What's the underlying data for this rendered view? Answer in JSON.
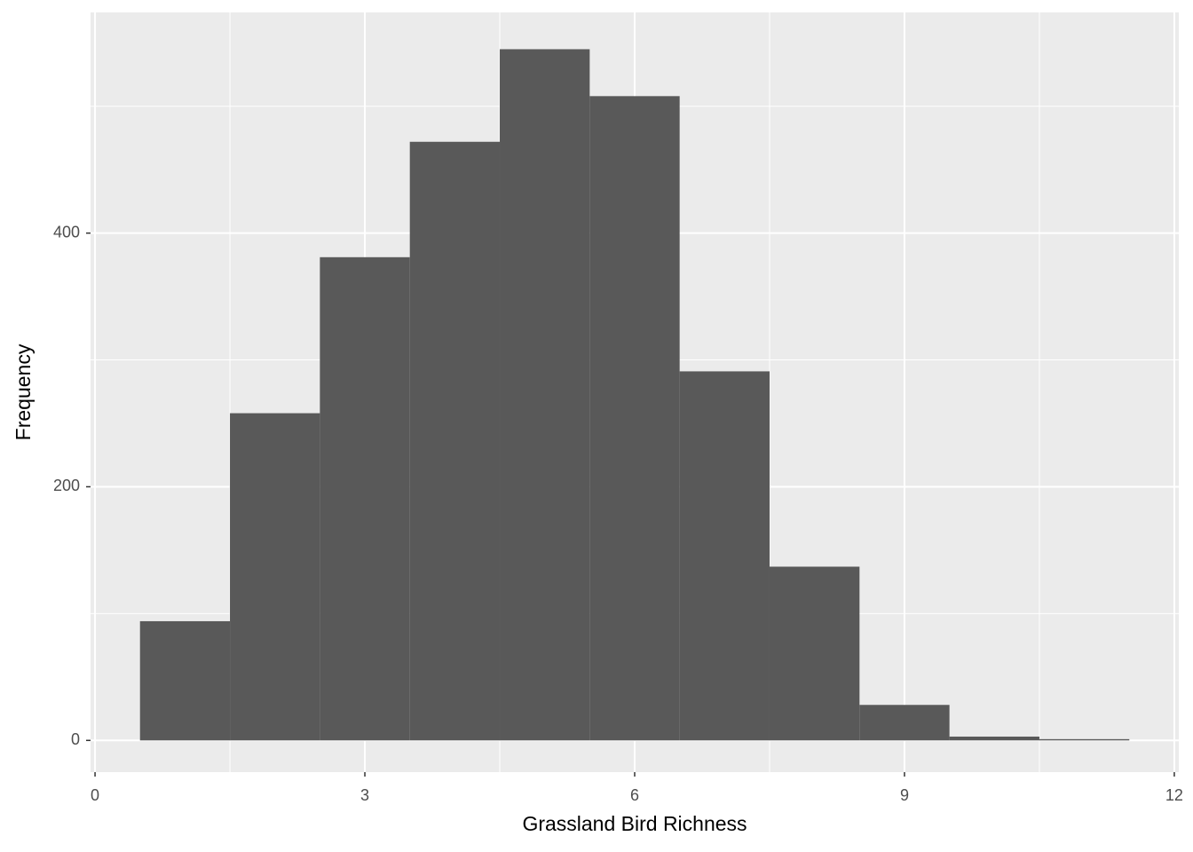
{
  "chart_data": {
    "type": "histogram",
    "xlabel": "Grassland Bird Richness",
    "ylabel": "Frequency",
    "bins": [
      0.5,
      1.5,
      2.5,
      3.5,
      4.5,
      5.5,
      6.5,
      7.5,
      8.5,
      9.5,
      10.5,
      11.5
    ],
    "values": [
      94,
      258,
      381,
      472,
      545,
      508,
      291,
      137,
      28,
      3,
      1
    ],
    "color": "#595959",
    "xlim": [
      -0.05,
      12.05
    ],
    "xticks": [
      0,
      3,
      6,
      9,
      12
    ],
    "ylim": [
      -25,
      574
    ],
    "yticks": [
      0,
      200,
      400
    ],
    "minor_xticks": [
      1.5,
      4.5,
      7.5,
      10.5
    ],
    "minor_yticks": [
      100,
      300,
      500
    ],
    "grid": true
  }
}
